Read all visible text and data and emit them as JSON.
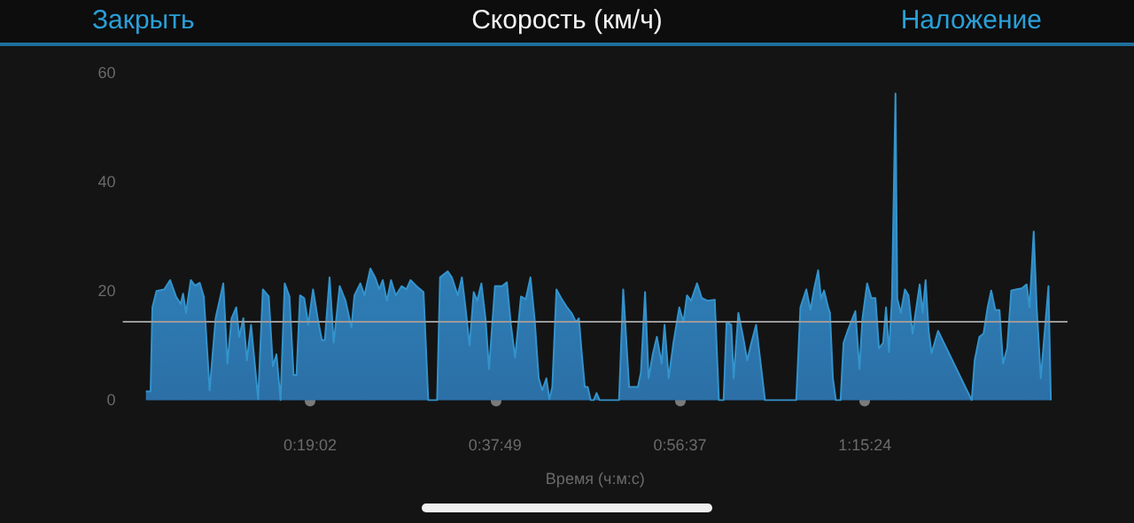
{
  "chart_data": {
    "type": "area",
    "title": "Скорость (км/ч)",
    "xlabel": "Время (ч:м:с)",
    "annotations": [
      "Закрыть",
      "Наложение"
    ],
    "color": "#3393cc",
    "marker": "none",
    "grid": false,
    "xlim": [
      0,
      1.6
    ],
    "xticks": [
      {
        "value": 0.31722,
        "label": "0:19:02"
      },
      {
        "value": 0.63028,
        "label": "0:37:49"
      },
      {
        "value": 0.94361,
        "label": "0:56:37"
      },
      {
        "value": 1.25667,
        "label": "1:15:24"
      }
    ],
    "ylim": [
      0,
      60
    ],
    "yticks": [
      0,
      20,
      40,
      60
    ],
    "ref_lines": [
      {
        "axis": "y",
        "value": 14.3,
        "color": "#9a9a9a"
      }
    ],
    "x": [
      0.0391,
      0.0471,
      0.0501,
      0.0571,
      0.0701,
      0.0801,
      0.0901,
      0.0981,
      0.1021,
      0.1071,
      0.1152,
      0.1221,
      0.1302,
      0.1372,
      0.1471,
      0.1572,
      0.1702,
      0.1772,
      0.1842,
      0.1922,
      0.1972,
      0.2042,
      0.2102,
      0.2172,
      0.2292,
      0.2372,
      0.2472,
      0.2542,
      0.2602,
      0.2672,
      0.2742,
      0.2822,
      0.2892,
      0.2942,
      0.3002,
      0.3072,
      0.3142,
      0.3222,
      0.3302,
      0.3372,
      0.3422,
      0.3502,
      0.3572,
      0.3673,
      0.3773,
      0.3872,
      0.3923,
      0.4023,
      0.4093,
      0.4193,
      0.4273,
      0.4343,
      0.4403,
      0.4473,
      0.4543,
      0.4623,
      0.4723,
      0.4803,
      0.4873,
      0.4973,
      0.5093,
      0.5173,
      0.5323,
      0.5373,
      0.5503,
      0.5573,
      0.5673,
      0.5743,
      0.5803,
      0.5873,
      0.5943,
      0.6003,
      0.6073,
      0.6143,
      0.6203,
      0.6303,
      0.6423,
      0.6504,
      0.6573,
      0.6644,
      0.6744,
      0.6824,
      0.6904,
      0.6974,
      0.7044,
      0.7104,
      0.7174,
      0.7224,
      0.7274,
      0.7344,
      0.7424,
      0.7524,
      0.7604,
      0.7674,
      0.7724,
      0.7774,
      0.7824,
      0.7874,
      0.7924,
      0.7974,
      0.8024,
      0.8074,
      0.8404,
      0.8475,
      0.8575,
      0.8724,
      0.8775,
      0.8845,
      0.8905,
      0.8975,
      0.9045,
      0.9125,
      0.9175,
      0.9245,
      0.9325,
      0.9425,
      0.9495,
      0.9555,
      0.9625,
      0.9725,
      0.9805,
      0.9905,
      1.0025,
      1.0095,
      1.0175,
      1.0225,
      1.0305,
      1.0345,
      1.0425,
      1.0505,
      1.0575,
      1.0645,
      1.0725,
      1.0876,
      1.1405,
      1.1476,
      1.1576,
      1.1646,
      1.1706,
      1.1776,
      1.1826,
      1.1876,
      1.1946,
      1.1976,
      1.2026,
      1.2076,
      1.2156,
      1.2206,
      1.2276,
      1.2406,
      1.2476,
      1.2526,
      1.2606,
      1.2676,
      1.2746,
      1.2806,
      1.2876,
      1.2926,
      1.2976,
      1.3026,
      1.3086,
      1.3116,
      1.3176,
      1.3246,
      1.3306,
      1.3376,
      1.3426,
      1.3496,
      1.3546,
      1.3596,
      1.3647,
      1.3697,
      1.3807,
      1.4377,
      1.4427,
      1.4507,
      1.4577,
      1.4647,
      1.4707,
      1.4777,
      1.4847,
      1.4907,
      1.4977,
      1.5047,
      1.5127,
      1.5227,
      1.5307,
      1.5357,
      1.5427,
      1.5477,
      1.5547,
      1.5677,
      1.5717
    ],
    "values": [
      1.6,
      1.6,
      17,
      20,
      20.3,
      22,
      19,
      17.6,
      19.5,
      16,
      22,
      21,
      21.5,
      19,
      1.8,
      15,
      21.4,
      6.7,
      15,
      17,
      11.6,
      15,
      7.3,
      13.8,
      0.2,
      20.3,
      19,
      6.2,
      8.4,
      0,
      21.4,
      19,
      4.6,
      4.6,
      19.2,
      18.7,
      13.8,
      20.3,
      14.9,
      11,
      11,
      22.5,
      10.5,
      20.9,
      18.2,
      13.3,
      19.2,
      21.4,
      19.2,
      24.1,
      22.5,
      20.3,
      22,
      18.2,
      22,
      19.2,
      20.9,
      20.3,
      22,
      20.9,
      19.8,
      0,
      0,
      22.5,
      23.6,
      22.5,
      19.2,
      22.5,
      17,
      10,
      19.8,
      18.2,
      21.4,
      14.9,
      5.7,
      20.9,
      20.9,
      21.6,
      13.8,
      7.8,
      19,
      18.5,
      22.5,
      14.9,
      4,
      1.8,
      4,
      0.2,
      2.4,
      20.3,
      18.7,
      17,
      15.9,
      14.3,
      15,
      8.4,
      2.4,
      2.4,
      0,
      0,
      1.3,
      0,
      0,
      20.3,
      2.4,
      2.4,
      5.1,
      19.8,
      4,
      8.4,
      11.6,
      6.7,
      13.8,
      4,
      10.5,
      17,
      14.3,
      19.2,
      18.2,
      21.4,
      18.7,
      18.2,
      18.4,
      0,
      0,
      14.3,
      13.8,
      4,
      16,
      11.6,
      7.3,
      10.5,
      13.8,
      0,
      0,
      17,
      20.3,
      16.5,
      20.3,
      23.8,
      18.6,
      20.1,
      17,
      16,
      4,
      0,
      0,
      10.5,
      12.7,
      16.3,
      5.7,
      14.9,
      21.4,
      18.7,
      18.7,
      9.5,
      10.5,
      17,
      8.8,
      18.6,
      56.2,
      18.6,
      16,
      20.3,
      19.2,
      12.2,
      16,
      21.2,
      16,
      22,
      12.7,
      8.6,
      12.7,
      0,
      7.3,
      11.6,
      12.2,
      17,
      20.1,
      16.5,
      16.5,
      6.7,
      9.5,
      20.1,
      20.3,
      20.5,
      21.2,
      17,
      30.9,
      17,
      4,
      20.9,
      0
    ]
  }
}
